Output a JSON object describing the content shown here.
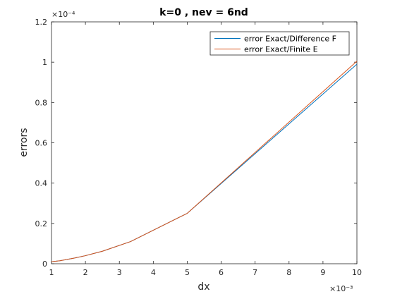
{
  "chart_data": {
    "type": "line",
    "title": "k=0 , nev = 6nd",
    "xlabel": "dx",
    "ylabel": "errors",
    "x_exponent_label": "×10⁻³",
    "y_exponent_label": "×10⁻⁴",
    "xlim": [
      1,
      10
    ],
    "ylim": [
      0,
      1.2
    ],
    "x_ticks": [
      1,
      2,
      3,
      4,
      5,
      6,
      7,
      8,
      9,
      10
    ],
    "y_ticks": [
      0,
      0.2,
      0.4,
      0.6,
      0.8,
      1,
      1.2
    ],
    "x_tick_labels": [
      "1",
      "2",
      "3",
      "4",
      "5",
      "6",
      "7",
      "8",
      "9",
      "10"
    ],
    "y_tick_labels": [
      "0",
      "0.2",
      "0.4",
      "0.6",
      "0.8",
      "1",
      "1.2"
    ],
    "grid": false,
    "legend_position": "top-right",
    "x": [
      1,
      1.25,
      1.67,
      2,
      2.5,
      3.33,
      5,
      10
    ],
    "series": [
      {
        "name": "error Exact/Difference F",
        "color": "#0072BD",
        "values": [
          0.01,
          0.015,
          0.028,
          0.04,
          0.062,
          0.11,
          0.25,
          0.99
        ]
      },
      {
        "name": "error Exact/Finite E",
        "color": "#D95319",
        "values": [
          0.01,
          0.015,
          0.028,
          0.04,
          0.062,
          0.11,
          0.25,
          1.005
        ]
      }
    ]
  }
}
